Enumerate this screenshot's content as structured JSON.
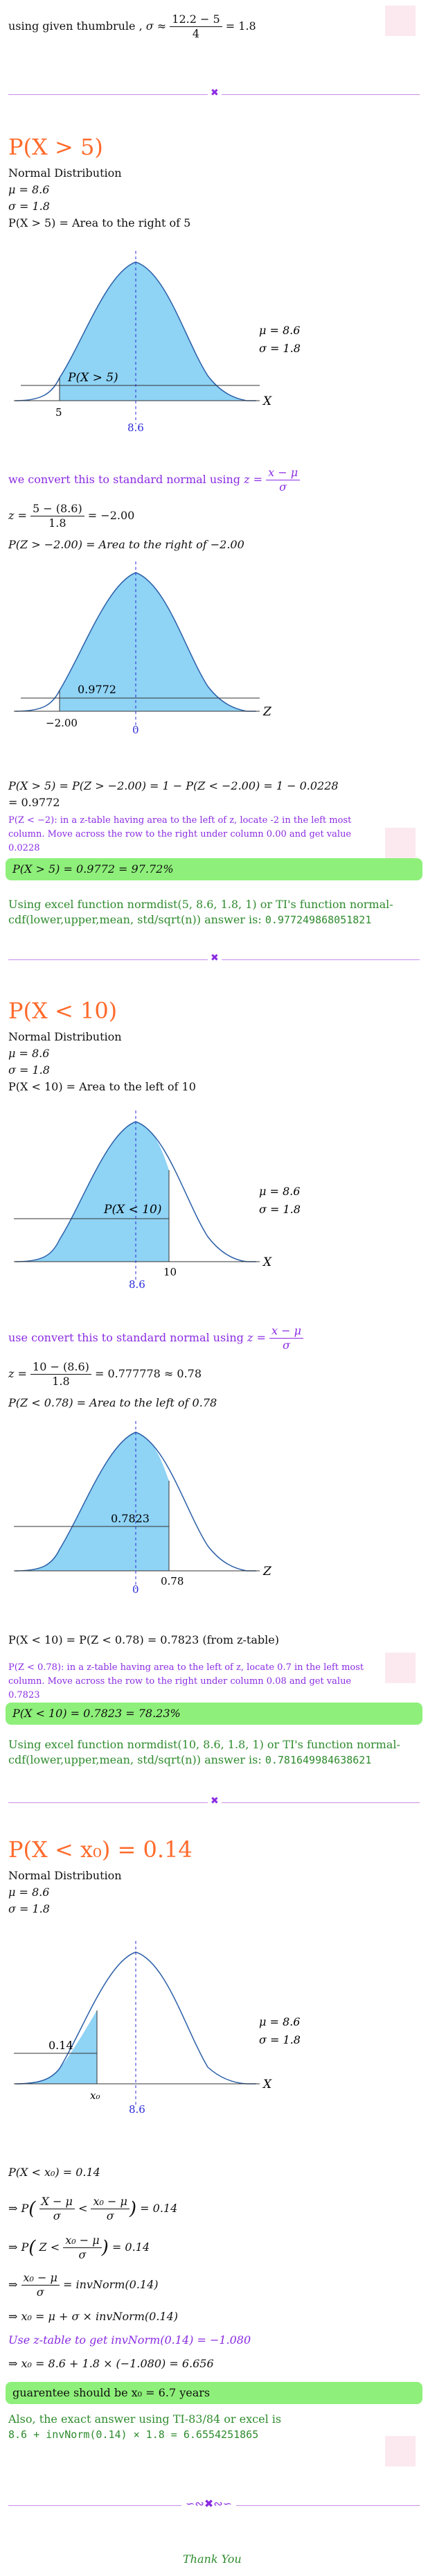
{
  "top": {
    "line_text": "using given thumbrule , ",
    "sigma_approx": "σ ≈",
    "numerator": "12.2 − 5",
    "denominator": "4",
    "result": "= 1.8"
  },
  "sec1": {
    "title": "P(X > 5)",
    "normal_label": "Normal Distribution",
    "mu": "μ = 8.6",
    "sigma": "σ = 1.8",
    "area_desc": "P(X > 5) = Area to the right of 5",
    "chart1": {
      "area_label": "P(X > 5)",
      "left_tick": "5",
      "mean_tick": "8.6",
      "axis": "X",
      "legend_mu": "μ = 8.6",
      "legend_sigma": "σ = 1.8"
    },
    "convert_text": "we convert this to standard normal using ",
    "convert_z": "z =",
    "convert_num": "x − μ",
    "convert_den": "σ",
    "z_lhs": "z =",
    "z_num": "5 − (8.6)",
    "z_den": "1.8",
    "z_result": "= −2.00",
    "pz_desc": "P(Z > −2.00) = Area to the right of −2.00",
    "chart2": {
      "area_label": "0.9772",
      "left_tick": "−2.00",
      "mean_tick": "0",
      "axis": "Z"
    },
    "result_line1": "P(X > 5) = P(Z > −2.00) = 1 − P(Z < −2.00) = 1 − 0.0228",
    "result_line2": "= 0.9772",
    "note": "P(Z < −2): in a z-table having area to the left of z, locate -2 in the left most column. Move across the row to the right under column 0.00 and get value 0.0228",
    "answer": "P(X > 5) = 0.9772 = 97.72%",
    "excel_text": "Using excel function normdist(5, 8.6, 1.8, 1) or TI's function normal-cdf(lower,upper,mean, std/sqrt(n)) answer is: ",
    "excel_value": "0.977249868051821"
  },
  "sec2": {
    "title": "P(X < 10)",
    "normal_label": "Normal Distribution",
    "mu": "μ = 8.6",
    "sigma": "σ = 1.8",
    "area_desc": "P(X < 10) = Area to the left of 10",
    "chart1": {
      "area_label": "P(X < 10)",
      "mean_tick": "8.6",
      "right_tick": "10",
      "axis": "X",
      "legend_mu": "μ = 8.6",
      "legend_sigma": "σ = 1.8"
    },
    "convert_text": "use convert this to standard normal using ",
    "convert_z": "z =",
    "convert_num": "x − μ",
    "convert_den": "σ",
    "z_lhs": "z =",
    "z_num": "10 − (8.6)",
    "z_den": "1.8",
    "z_result": "= 0.777778 ≈ 0.78",
    "pz_desc": "P(Z < 0.78) = Area to the left of 0.78",
    "chart2": {
      "area_label": "0.7823",
      "mean_tick": "0",
      "right_tick": "0.78",
      "axis": "Z"
    },
    "result_line": "P(X < 10) = P(Z < 0.78) = 0.7823 (from z-table)",
    "note": "P(Z < 0.78): in a z-table having area to the left of z, locate 0.7 in the left most column. Move across the row to the right under column 0.08 and get value 0.7823",
    "answer": "P(X < 10) = 0.7823 = 78.23%",
    "excel_text": "Using excel function normdist(10, 8.6, 1.8, 1) or TI's function normal-cdf(lower,upper,mean, std/sqrt(n)) answer is: ",
    "excel_value": "0.781649984638621"
  },
  "sec3": {
    "title": "P(X < x₀) = 0.14",
    "normal_label": "Normal Distribution",
    "mu": "μ = 8.6",
    "sigma": "σ = 1.8",
    "chart1": {
      "area_label": "0.14",
      "x0_tick": "x₀",
      "mean_tick": "8.6",
      "axis": "X",
      "legend_mu": "μ = 8.6",
      "legend_sigma": "σ = 1.8"
    },
    "eq0": "P(X < x₀) = 0.14",
    "eq1_pre": "⇒ P",
    "eq1_a_num": "X − μ",
    "eq1_a_den": "σ",
    "eq1_mid": "<",
    "eq1_b_num": "x₀ − μ",
    "eq1_b_den": "σ",
    "eq1_post": "= 0.14",
    "eq2_pre": "⇒ P",
    "eq2_z": "Z <",
    "eq2_num": "x₀ − μ",
    "eq2_den": "σ",
    "eq2_post": "= 0.14",
    "eq3_pre": "⇒",
    "eq3_num": "x₀ − μ",
    "eq3_den": "σ",
    "eq3_post": "= invNorm(0.14)",
    "eq4": "⇒ x₀ = μ + σ × invNorm(0.14)",
    "ztable_line": "Use z-table to get invNorm(0.14) = −1.080",
    "eq5": "⇒ x₀ = 8.6 + 1.8 × (−1.080) = 6.656",
    "answer": "guarentee should be x₀ = 6.7 years",
    "exact_line1": "Also, the exact answer using TI-83/84 or excel is",
    "exact_line2": "8.6 + invNorm(0.14) × 1.8 = 6.6554251865"
  },
  "footer": {
    "ornament": "∽∾✖∾∽",
    "thanks": "Thank You"
  },
  "colors": {
    "curve_fill": "#8fd3f5",
    "accent_orange": "#ff6a2b",
    "accent_purple": "#8a2be2",
    "accent_green": "#2e8b2e",
    "highlight": "#8ef07a",
    "axis_blue": "#2a2ad8"
  }
}
